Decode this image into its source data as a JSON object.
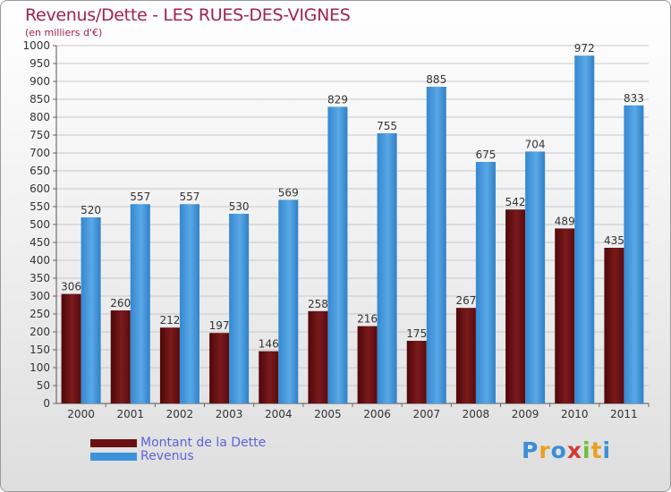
{
  "header": {
    "title": "Revenus/Dette - LES RUES-DES-VIGNES",
    "subtitle": "(en milliers d'€)"
  },
  "legend": {
    "items": [
      {
        "label": "Montant de la Dette",
        "color": "#6b0f12"
      },
      {
        "label": "Revenus",
        "color": "#3d93dc"
      }
    ]
  },
  "logo": {
    "letters": [
      "P",
      "r",
      "o",
      "x",
      "i",
      "t",
      "i"
    ],
    "colors": [
      "#3b8ed8",
      "#e8a020",
      "#3b8ed8",
      "#d23a3a",
      "#6cbf3a",
      "#e8a020",
      "#3b8ed8"
    ]
  },
  "colors": {
    "dette": "#6b0f12",
    "revenus": "#3d93dc",
    "title": "#a0224f",
    "legend_text": "#5a64d8"
  },
  "chart_data": {
    "type": "bar",
    "title": "Revenus/Dette - LES RUES-DES-VIGNES",
    "subtitle": "(en milliers d'€)",
    "xlabel": "",
    "ylabel": "",
    "ylim": [
      0,
      1000
    ],
    "yticks": [
      0,
      50,
      100,
      150,
      200,
      250,
      300,
      350,
      400,
      450,
      500,
      550,
      600,
      650,
      700,
      750,
      800,
      850,
      900,
      950,
      1000
    ],
    "grid": true,
    "legend_position": "bottom-left",
    "categories": [
      "2000",
      "2001",
      "2002",
      "2003",
      "2004",
      "2005",
      "2006",
      "2007",
      "2008",
      "2009",
      "2010",
      "2011"
    ],
    "series": [
      {
        "name": "Montant de la Dette",
        "values": [
          306,
          260,
          212,
          197,
          146,
          258,
          216,
          175,
          267,
          542,
          489,
          435
        ]
      },
      {
        "name": "Revenus",
        "values": [
          520,
          557,
          557,
          530,
          569,
          829,
          755,
          885,
          675,
          704,
          972,
          833
        ]
      }
    ]
  }
}
